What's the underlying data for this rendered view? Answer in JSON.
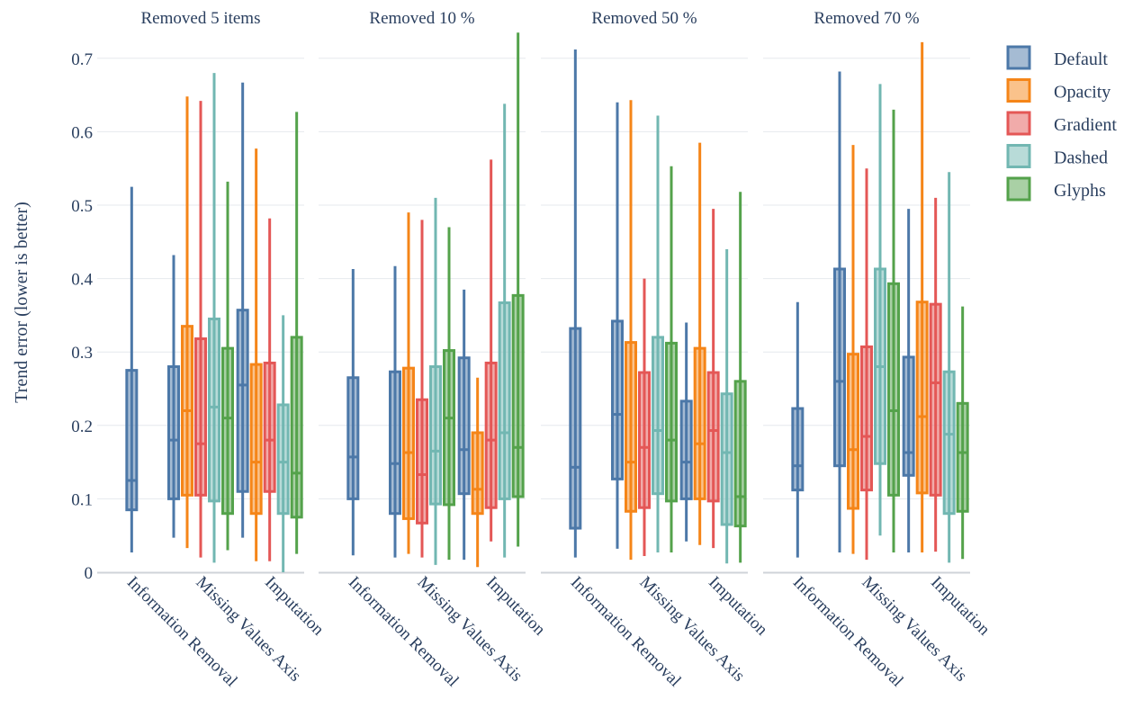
{
  "chart_data": {
    "type": "box",
    "ylabel": "Trend error (lower is better)",
    "ylim": [
      0,
      0.74
    ],
    "yticks": [
      0,
      0.1,
      0.2,
      0.3,
      0.4,
      0.5,
      0.6,
      0.7
    ],
    "ytick_labels": [
      "0",
      "0.1",
      "0.2",
      "0.3",
      "0.4",
      "0.5",
      "0.6",
      "0.7"
    ],
    "grid": true,
    "legend_position": "right",
    "categories": [
      "Information Removal",
      "Missing Values Axis",
      "Imputation"
    ],
    "series": [
      {
        "name": "Default",
        "color": "#4c78a8"
      },
      {
        "name": "Opacity",
        "color": "#f58518"
      },
      {
        "name": "Gradient",
        "color": "#e45756"
      },
      {
        "name": "Dashed",
        "color": "#72b7b2"
      },
      {
        "name": "Glyphs",
        "color": "#54a24b"
      }
    ],
    "panels": [
      {
        "title": "Removed 5 items",
        "groups": [
          {
            "category": "Information Removal",
            "boxes": [
              {
                "series": "Default",
                "min": 0.027,
                "q1": 0.085,
                "median": 0.125,
                "q3": 0.275,
                "max": 0.525
              }
            ]
          },
          {
            "category": "Missing Values Axis",
            "boxes": [
              {
                "series": "Default",
                "min": 0.047,
                "q1": 0.1,
                "median": 0.18,
                "q3": 0.28,
                "max": 0.432
              },
              {
                "series": "Opacity",
                "min": 0.033,
                "q1": 0.105,
                "median": 0.22,
                "q3": 0.335,
                "max": 0.648
              },
              {
                "series": "Gradient",
                "min": 0.02,
                "q1": 0.105,
                "median": 0.175,
                "q3": 0.318,
                "max": 0.642
              },
              {
                "series": "Dashed",
                "min": 0.013,
                "q1": 0.097,
                "median": 0.225,
                "q3": 0.345,
                "max": 0.68
              },
              {
                "series": "Glyphs",
                "min": 0.03,
                "q1": 0.08,
                "median": 0.21,
                "q3": 0.305,
                "max": 0.532
              }
            ]
          },
          {
            "category": "Imputation",
            "boxes": [
              {
                "series": "Default",
                "min": 0.047,
                "q1": 0.11,
                "median": 0.255,
                "q3": 0.357,
                "max": 0.667
              },
              {
                "series": "Opacity",
                "min": 0.015,
                "q1": 0.08,
                "median": 0.15,
                "q3": 0.283,
                "max": 0.577
              },
              {
                "series": "Gradient",
                "min": 0.015,
                "q1": 0.11,
                "median": 0.18,
                "q3": 0.285,
                "max": 0.482
              },
              {
                "series": "Dashed",
                "min": 0.0,
                "q1": 0.08,
                "median": 0.15,
                "q3": 0.228,
                "max": 0.35
              },
              {
                "series": "Glyphs",
                "min": 0.025,
                "q1": 0.075,
                "median": 0.135,
                "q3": 0.32,
                "max": 0.627
              }
            ]
          }
        ]
      },
      {
        "title": "Removed 10 %",
        "groups": [
          {
            "category": "Information Removal",
            "boxes": [
              {
                "series": "Default",
                "min": 0.023,
                "q1": 0.1,
                "median": 0.157,
                "q3": 0.265,
                "max": 0.413
              }
            ]
          },
          {
            "category": "Missing Values Axis",
            "boxes": [
              {
                "series": "Default",
                "min": 0.02,
                "q1": 0.08,
                "median": 0.148,
                "q3": 0.273,
                "max": 0.417
              },
              {
                "series": "Opacity",
                "min": 0.025,
                "q1": 0.073,
                "median": 0.163,
                "q3": 0.278,
                "max": 0.49
              },
              {
                "series": "Gradient",
                "min": 0.02,
                "q1": 0.067,
                "median": 0.133,
                "q3": 0.235,
                "max": 0.48
              },
              {
                "series": "Dashed",
                "min": 0.01,
                "q1": 0.093,
                "median": 0.165,
                "q3": 0.28,
                "max": 0.51
              },
              {
                "series": "Glyphs",
                "min": 0.017,
                "q1": 0.092,
                "median": 0.21,
                "q3": 0.302,
                "max": 0.47
              }
            ]
          },
          {
            "category": "Imputation",
            "boxes": [
              {
                "series": "Default",
                "min": 0.017,
                "q1": 0.107,
                "median": 0.167,
                "q3": 0.292,
                "max": 0.385
              },
              {
                "series": "Opacity",
                "min": 0.007,
                "q1": 0.08,
                "median": 0.113,
                "q3": 0.19,
                "max": 0.265
              },
              {
                "series": "Gradient",
                "min": 0.042,
                "q1": 0.088,
                "median": 0.18,
                "q3": 0.285,
                "max": 0.562
              },
              {
                "series": "Dashed",
                "min": 0.02,
                "q1": 0.1,
                "median": 0.19,
                "q3": 0.367,
                "max": 0.638
              },
              {
                "series": "Glyphs",
                "min": 0.035,
                "q1": 0.103,
                "median": 0.17,
                "q3": 0.377,
                "max": 0.735
              }
            ]
          }
        ]
      },
      {
        "title": "Removed 50 %",
        "groups": [
          {
            "category": "Information Removal",
            "boxes": [
              {
                "series": "Default",
                "min": 0.02,
                "q1": 0.06,
                "median": 0.143,
                "q3": 0.332,
                "max": 0.712
              }
            ]
          },
          {
            "category": "Missing Values Axis",
            "boxes": [
              {
                "series": "Default",
                "min": 0.032,
                "q1": 0.127,
                "median": 0.215,
                "q3": 0.342,
                "max": 0.64
              },
              {
                "series": "Opacity",
                "min": 0.017,
                "q1": 0.083,
                "median": 0.15,
                "q3": 0.313,
                "max": 0.643
              },
              {
                "series": "Gradient",
                "min": 0.022,
                "q1": 0.088,
                "median": 0.17,
                "q3": 0.272,
                "max": 0.4
              },
              {
                "series": "Dashed",
                "min": 0.027,
                "q1": 0.107,
                "median": 0.193,
                "q3": 0.32,
                "max": 0.622
              },
              {
                "series": "Glyphs",
                "min": 0.027,
                "q1": 0.097,
                "median": 0.18,
                "q3": 0.312,
                "max": 0.553
              }
            ]
          },
          {
            "category": "Imputation",
            "boxes": [
              {
                "series": "Default",
                "min": 0.042,
                "q1": 0.1,
                "median": 0.15,
                "q3": 0.233,
                "max": 0.34
              },
              {
                "series": "Opacity",
                "min": 0.037,
                "q1": 0.1,
                "median": 0.175,
                "q3": 0.305,
                "max": 0.585
              },
              {
                "series": "Gradient",
                "min": 0.033,
                "q1": 0.097,
                "median": 0.193,
                "q3": 0.272,
                "max": 0.495
              },
              {
                "series": "Dashed",
                "min": 0.012,
                "q1": 0.065,
                "median": 0.163,
                "q3": 0.243,
                "max": 0.44
              },
              {
                "series": "Glyphs",
                "min": 0.013,
                "q1": 0.063,
                "median": 0.103,
                "q3": 0.26,
                "max": 0.518
              }
            ]
          }
        ]
      },
      {
        "title": "Removed 70 %",
        "groups": [
          {
            "category": "Information Removal",
            "boxes": [
              {
                "series": "Default",
                "min": 0.02,
                "q1": 0.112,
                "median": 0.145,
                "q3": 0.223,
                "max": 0.368
              }
            ]
          },
          {
            "category": "Missing Values Axis",
            "boxes": [
              {
                "series": "Default",
                "min": 0.027,
                "q1": 0.145,
                "median": 0.26,
                "q3": 0.413,
                "max": 0.682
              },
              {
                "series": "Opacity",
                "min": 0.025,
                "q1": 0.087,
                "median": 0.167,
                "q3": 0.297,
                "max": 0.582
              },
              {
                "series": "Gradient",
                "min": 0.017,
                "q1": 0.112,
                "median": 0.185,
                "q3": 0.307,
                "max": 0.55
              },
              {
                "series": "Dashed",
                "min": 0.05,
                "q1": 0.148,
                "median": 0.28,
                "q3": 0.413,
                "max": 0.665
              },
              {
                "series": "Glyphs",
                "min": 0.027,
                "q1": 0.105,
                "median": 0.22,
                "q3": 0.393,
                "max": 0.63
              }
            ]
          },
          {
            "category": "Imputation",
            "boxes": [
              {
                "series": "Default",
                "min": 0.027,
                "q1": 0.132,
                "median": 0.163,
                "q3": 0.293,
                "max": 0.495
              },
              {
                "series": "Opacity",
                "min": 0.027,
                "q1": 0.108,
                "median": 0.212,
                "q3": 0.368,
                "max": 0.722
              },
              {
                "series": "Gradient",
                "min": 0.028,
                "q1": 0.105,
                "median": 0.258,
                "q3": 0.365,
                "max": 0.51
              },
              {
                "series": "Dashed",
                "min": 0.013,
                "q1": 0.08,
                "median": 0.188,
                "q3": 0.273,
                "max": 0.545
              },
              {
                "series": "Glyphs",
                "min": 0.018,
                "q1": 0.083,
                "median": 0.163,
                "q3": 0.23,
                "max": 0.362
              }
            ]
          }
        ]
      }
    ]
  }
}
